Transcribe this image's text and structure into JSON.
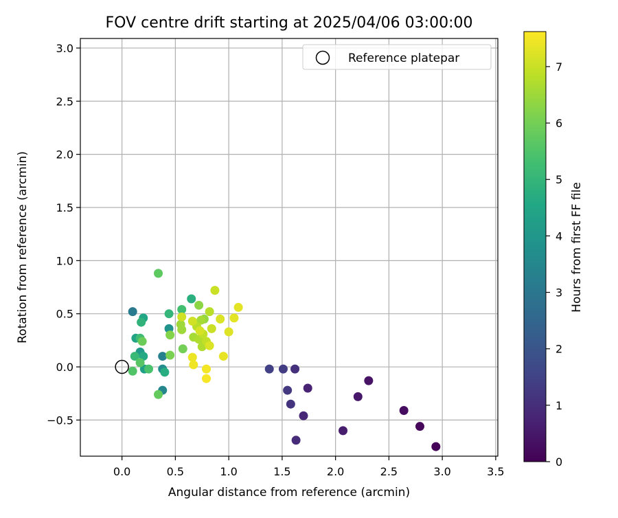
{
  "chart_data": {
    "type": "scatter",
    "title": "FOV centre drift starting at 2025/04/06 03:00:00",
    "xlabel": "Angular distance from reference (arcmin)",
    "ylabel": "Rotation from reference (arcmin)",
    "xlim": [
      -0.39,
      3.52
    ],
    "ylim": [
      -0.84,
      3.09
    ],
    "xticks": [
      0.0,
      0.5,
      1.0,
      1.5,
      2.0,
      2.5,
      3.0,
      3.5
    ],
    "xtick_labels": [
      "0.0",
      "0.5",
      "1.0",
      "1.5",
      "2.0",
      "2.5",
      "3.0",
      "3.5"
    ],
    "yticks": [
      -0.5,
      0.0,
      0.5,
      1.0,
      1.5,
      2.0,
      2.5,
      3.0
    ],
    "ytick_labels": [
      "−0.5",
      "0.0",
      "0.5",
      "1.0",
      "1.5",
      "2.0",
      "2.5",
      "3.0"
    ],
    "grid": true,
    "legend": {
      "position": "top-right",
      "label": "Reference platepar"
    },
    "reference_point": {
      "x": 0.0,
      "y": 0.0,
      "marker": "open-circle"
    },
    "colorbar": {
      "label": "Hours from first FF file",
      "colormap": "viridis",
      "range": [
        0,
        7.62
      ],
      "ticks": [
        0,
        1,
        2,
        3,
        4,
        5,
        6,
        7
      ],
      "tick_labels": [
        "0",
        "1",
        "2",
        "3",
        "4",
        "5",
        "6",
        "7"
      ]
    },
    "series": [
      {
        "points": [
          {
            "x": 2.94,
            "y": -0.75,
            "c": 0.05
          },
          {
            "x": 2.79,
            "y": -0.56,
            "c": 0.15
          },
          {
            "x": 2.64,
            "y": -0.41,
            "c": 0.25
          },
          {
            "x": 2.31,
            "y": -0.13,
            "c": 0.4
          },
          {
            "x": 2.21,
            "y": -0.28,
            "c": 0.5
          },
          {
            "x": 2.07,
            "y": -0.6,
            "c": 0.6
          },
          {
            "x": 1.74,
            "y": -0.2,
            "c": 0.75
          },
          {
            "x": 1.7,
            "y": -0.46,
            "c": 0.85
          },
          {
            "x": 1.63,
            "y": -0.69,
            "c": 0.95
          },
          {
            "x": 1.62,
            "y": -0.02,
            "c": 1.05
          },
          {
            "x": 1.58,
            "y": -0.35,
            "c": 1.15
          },
          {
            "x": 1.55,
            "y": -0.22,
            "c": 1.25
          },
          {
            "x": 1.51,
            "y": -0.02,
            "c": 1.35
          },
          {
            "x": 1.38,
            "y": -0.02,
            "c": 1.45
          },
          {
            "x": 0.1,
            "y": 0.52,
            "c": 3.1
          },
          {
            "x": 0.38,
            "y": 0.1,
            "c": 3.3
          },
          {
            "x": 0.38,
            "y": -0.22,
            "c": 3.5
          },
          {
            "x": 0.38,
            "y": -0.02,
            "c": 3.7
          },
          {
            "x": 0.44,
            "y": 0.36,
            "c": 3.9
          },
          {
            "x": 0.17,
            "y": 0.14,
            "c": 4.1
          },
          {
            "x": 0.21,
            "y": -0.02,
            "c": 4.3
          },
          {
            "x": 0.13,
            "y": 0.27,
            "c": 4.4
          },
          {
            "x": 0.2,
            "y": 0.46,
            "c": 4.5
          },
          {
            "x": 0.2,
            "y": 0.1,
            "c": 4.6
          },
          {
            "x": 0.4,
            "y": -0.05,
            "c": 4.7
          },
          {
            "x": 0.65,
            "y": 0.64,
            "c": 4.8
          },
          {
            "x": 0.18,
            "y": 0.42,
            "c": 4.9
          },
          {
            "x": 0.44,
            "y": 0.5,
            "c": 5.0
          },
          {
            "x": 0.12,
            "y": 0.1,
            "c": 5.1
          },
          {
            "x": 0.17,
            "y": 0.27,
            "c": 5.2
          },
          {
            "x": 0.56,
            "y": 0.54,
            "c": 5.3
          },
          {
            "x": 0.25,
            "y": -0.02,
            "c": 5.4
          },
          {
            "x": 0.1,
            "y": -0.04,
            "c": 5.5
          },
          {
            "x": 0.17,
            "y": 0.04,
            "c": 5.6
          },
          {
            "x": 0.34,
            "y": 0.88,
            "c": 5.7
          },
          {
            "x": 0.34,
            "y": -0.26,
            "c": 5.8
          },
          {
            "x": 0.19,
            "y": 0.24,
            "c": 5.9
          },
          {
            "x": 0.57,
            "y": 0.17,
            "c": 6.0
          },
          {
            "x": 0.45,
            "y": 0.11,
            "c": 6.1
          },
          {
            "x": 0.45,
            "y": 0.3,
            "c": 6.2
          },
          {
            "x": 0.72,
            "y": 0.58,
            "c": 6.3
          },
          {
            "x": 0.77,
            "y": 0.45,
            "c": 6.4
          },
          {
            "x": 0.55,
            "y": 0.4,
            "c": 6.5
          },
          {
            "x": 0.56,
            "y": 0.35,
            "c": 6.5
          },
          {
            "x": 0.74,
            "y": 0.44,
            "c": 6.6
          },
          {
            "x": 0.67,
            "y": 0.28,
            "c": 6.6
          },
          {
            "x": 0.72,
            "y": 0.26,
            "c": 6.7
          },
          {
            "x": 0.75,
            "y": 0.19,
            "c": 6.7
          },
          {
            "x": 0.82,
            "y": 0.52,
            "c": 6.8
          },
          {
            "x": 0.7,
            "y": 0.38,
            "c": 6.8
          },
          {
            "x": 0.76,
            "y": 0.31,
            "c": 6.9
          },
          {
            "x": 0.79,
            "y": 0.24,
            "c": 6.9
          },
          {
            "x": 0.84,
            "y": 0.36,
            "c": 7.0
          },
          {
            "x": 0.87,
            "y": 0.72,
            "c": 7.0
          },
          {
            "x": 0.56,
            "y": 0.47,
            "c": 7.1
          },
          {
            "x": 0.66,
            "y": 0.43,
            "c": 7.1
          },
          {
            "x": 0.73,
            "y": 0.34,
            "c": 7.15
          },
          {
            "x": 0.82,
            "y": 0.2,
            "c": 7.2
          },
          {
            "x": 0.92,
            "y": 0.45,
            "c": 7.2
          },
          {
            "x": 1.0,
            "y": 0.33,
            "c": 7.25
          },
          {
            "x": 1.05,
            "y": 0.46,
            "c": 7.3
          },
          {
            "x": 1.09,
            "y": 0.56,
            "c": 7.3
          },
          {
            "x": 0.95,
            "y": 0.1,
            "c": 7.35
          },
          {
            "x": 0.66,
            "y": 0.09,
            "c": 7.4
          },
          {
            "x": 0.67,
            "y": 0.02,
            "c": 7.45
          },
          {
            "x": 0.79,
            "y": -0.02,
            "c": 7.5
          },
          {
            "x": 0.79,
            "y": -0.11,
            "c": 7.55
          }
        ]
      }
    ]
  }
}
